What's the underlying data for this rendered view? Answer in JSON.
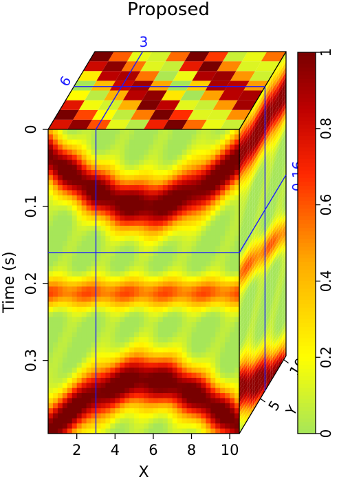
{
  "chart_data": {
    "type": "heatmap",
    "title": "Proposed",
    "xlabel": "X",
    "ylabel": "Time (s)",
    "zlabel": "Y",
    "x_ticks": [
      "2",
      "4",
      "6",
      "8",
      "10"
    ],
    "y_ticks": [
      "0",
      "0.1",
      "0.2",
      "0.3"
    ],
    "z_ticks": [
      "5",
      "10"
    ],
    "colorbar_ticks": [
      "0",
      "0.2",
      "0.4",
      "0.6",
      "0.8",
      "1"
    ],
    "xlim": [
      0.5,
      10.5
    ],
    "ylim": [
      0,
      0.395
    ],
    "zlim": [
      0.5,
      10.5
    ],
    "colorbar_range": [
      0,
      1
    ],
    "colormap": "yellow-green to red to dark red",
    "slice_labels": {
      "x": "3",
      "y": "6",
      "time": "0.16"
    },
    "slice_values": {
      "x": 3,
      "y": 6,
      "time": 0.16
    },
    "slice_line_color": "#1a1aff"
  }
}
